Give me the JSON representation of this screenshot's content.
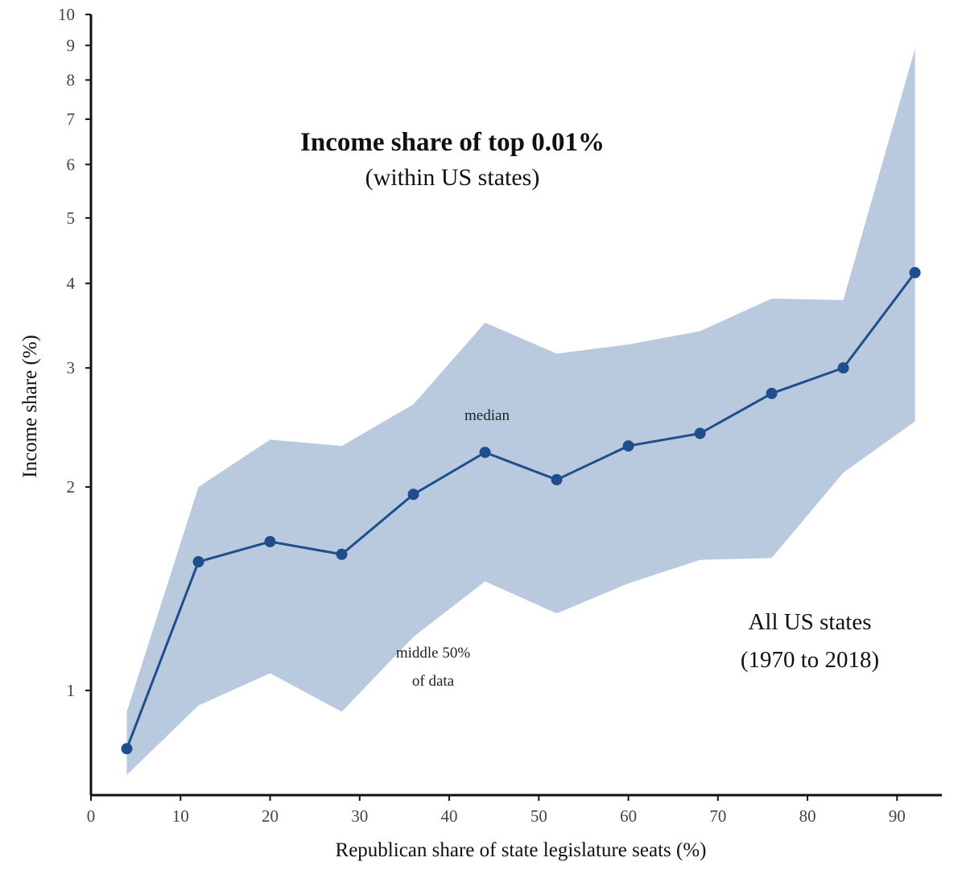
{
  "chart_data": {
    "type": "line",
    "title": "Income share of top 0.01%",
    "subtitle": "(within US states)",
    "xlabel": "Republican share of state legislature seats (%)",
    "ylabel": "Income share (%)",
    "x_scale": "linear",
    "y_scale": "log",
    "xlim": [
      0,
      95
    ],
    "ylim": [
      0.7,
      10
    ],
    "x_ticks": [
      0,
      10,
      20,
      30,
      40,
      50,
      60,
      70,
      80,
      90
    ],
    "y_ticks": [
      1,
      2,
      3,
      4,
      5,
      6,
      7,
      8,
      9,
      10
    ],
    "series": [
      {
        "name": "median",
        "color": "#1f4e8c",
        "x": [
          4,
          12,
          20,
          28,
          36,
          44,
          52,
          60,
          68,
          76,
          84,
          92
        ],
        "values": [
          0.82,
          1.55,
          1.66,
          1.59,
          1.95,
          2.25,
          2.05,
          2.3,
          2.4,
          2.75,
          3.0,
          4.15
        ]
      }
    ],
    "band": {
      "name": "middle 50% of data",
      "color": "#b9cadf",
      "x": [
        4,
        12,
        20,
        28,
        36,
        44,
        52,
        60,
        68,
        76,
        84,
        92
      ],
      "lower": [
        0.75,
        0.95,
        1.06,
        0.93,
        1.2,
        1.45,
        1.3,
        1.44,
        1.56,
        1.57,
        2.1,
        2.5
      ],
      "upper": [
        0.93,
        2.0,
        2.35,
        2.3,
        2.65,
        3.5,
        3.15,
        3.25,
        3.4,
        3.8,
        3.78,
        8.9
      ]
    },
    "annotations": {
      "median_label": "median",
      "band_label_line1": "middle 50%",
      "band_label_line2": "of data",
      "scope_line1": "All US states",
      "scope_line2": "(1970 to 2018)"
    }
  }
}
